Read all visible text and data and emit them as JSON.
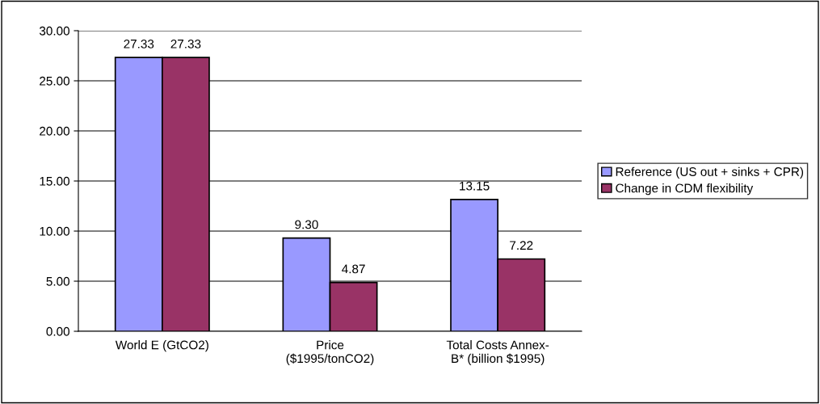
{
  "chart_data": {
    "type": "bar",
    "categories": [
      "World E (GtCO2)",
      "Price\n($1995/tonCO2)",
      "Total Costs Annex-\nB* (billion $1995)"
    ],
    "series": [
      {
        "name": "Reference (US out + sinks + CPR)",
        "color": "#9999ff",
        "values": [
          27.33,
          9.3,
          13.15
        ],
        "value_labels": [
          "27.33",
          "9.30",
          "13.15"
        ]
      },
      {
        "name": "Change in CDM flexibility",
        "color": "#993366",
        "values": [
          27.33,
          4.87,
          7.22
        ],
        "value_labels": [
          "27.33",
          "4.87",
          "7.22"
        ]
      }
    ],
    "ylim": [
      0,
      30
    ],
    "yticks": [
      {
        "value": 0,
        "label": "0.00"
      },
      {
        "value": 5,
        "label": "5.00"
      },
      {
        "value": 10,
        "label": "10.00"
      },
      {
        "value": 15,
        "label": "15.00"
      },
      {
        "value": 20,
        "label": "20.00"
      },
      {
        "value": 25,
        "label": "25.00"
      },
      {
        "value": 30,
        "label": "30.00"
      }
    ],
    "grid": "y",
    "legend": "right"
  }
}
